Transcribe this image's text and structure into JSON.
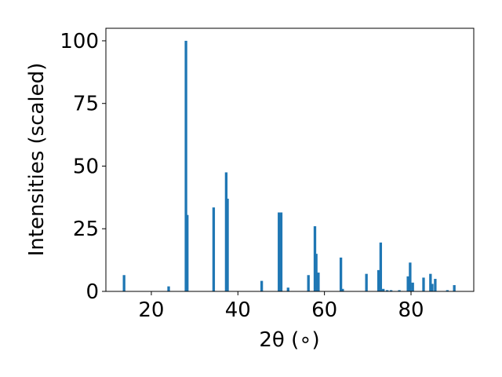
{
  "chart_data": {
    "type": "bar",
    "title": "",
    "xlabel": "2θ (∘)",
    "ylabel": "Intensities (scaled)",
    "xlim": [
      9.5,
      94.5
    ],
    "ylim": [
      0,
      105
    ],
    "xticks": [
      20,
      40,
      60,
      80
    ],
    "yticks": [
      0,
      25,
      50,
      75,
      100
    ],
    "grid": false,
    "bar_color": "#1f77b4",
    "bar_width": 0.6,
    "x": [
      13.7,
      24.0,
      28.0,
      28.3,
      34.4,
      37.3,
      37.6,
      45.5,
      49.5,
      50.0,
      51.6,
      56.3,
      57.8,
      58.1,
      58.6,
      63.8,
      64.2,
      69.7,
      72.5,
      73.0,
      73.6,
      74.5,
      75.4,
      77.3,
      79.3,
      79.8,
      80.4,
      82.9,
      84.5,
      84.9,
      85.6,
      88.4,
      90.0
    ],
    "values": [
      6.5,
      2.0,
      100.0,
      30.5,
      33.5,
      47.5,
      37.0,
      4.2,
      31.5,
      31.5,
      1.5,
      6.5,
      26.0,
      15.0,
      7.5,
      13.5,
      1.0,
      7.0,
      8.5,
      19.5,
      1.0,
      0.5,
      0.5,
      0.5,
      6.0,
      11.5,
      3.5,
      5.5,
      7.0,
      3.0,
      5.0,
      0.5,
      2.5
    ]
  }
}
